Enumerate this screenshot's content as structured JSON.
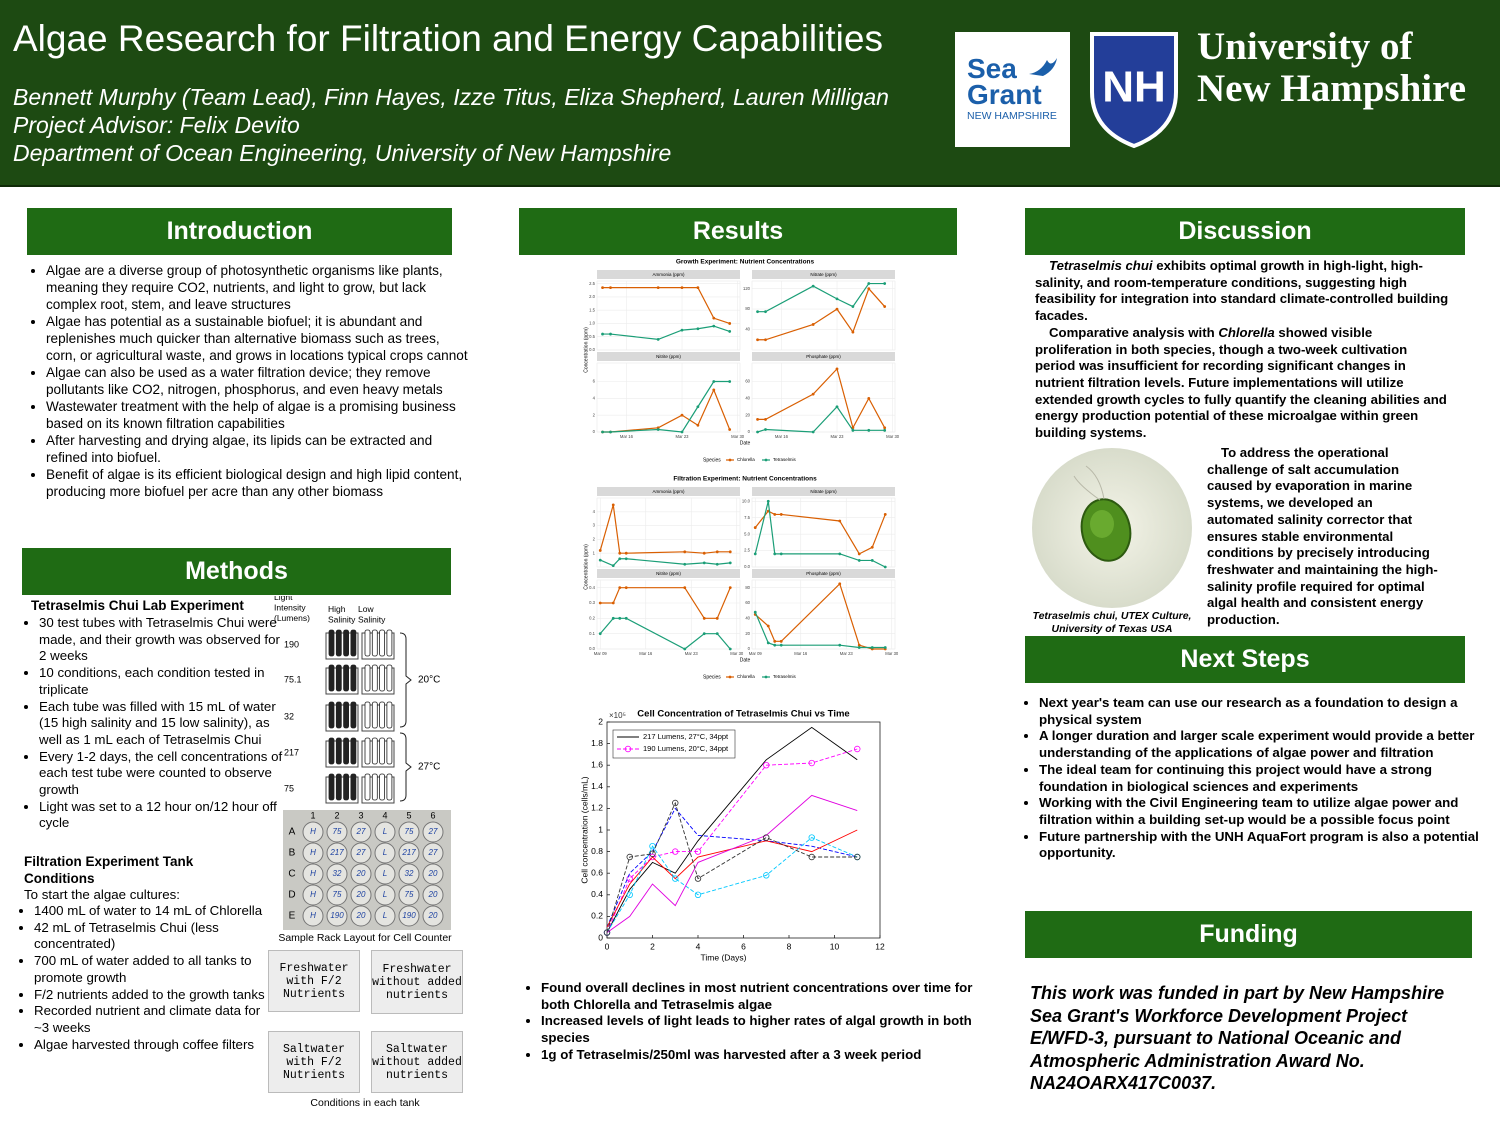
{
  "header": {
    "title": "Algae Research for Filtration and Energy Capabilities",
    "authors": "Bennett Murphy (Team Lead), Finn Hayes, Izze Titus, Eliza Shepherd, Lauren Milligan",
    "advisor": "Project Advisor: Felix Devito",
    "department": "Department of Ocean Engineering, University of New Hampshire",
    "logos": {
      "sea": "Sea",
      "grant": "Grant",
      "state": "NEW HAMPSHIRE",
      "shield": "NH",
      "university_line1": "University of",
      "university_line2": "New Hampshire"
    }
  },
  "introduction": {
    "heading": "Introduction",
    "bullets": [
      "Algae are a diverse group of photosynthetic organisms like plants, meaning they require CO2, nutrients, and light to grow, but lack complex root, stem, and leave structures",
      "Algae has potential as a sustainable biofuel; it is abundant and replenishes much quicker than alternative biomass such as trees, corn, or agricultural waste, and grows in locations typical crops cannot",
      "Algae can also be used as a water filtration device; they remove pollutants like CO2, nitrogen, phosphorus, and even heavy metals",
      "Wastewater treatment with the help of algae is a promising business based on its known filtration capabilities",
      "After harvesting and drying algae, its lipids can be extracted and refined into biofuel.",
      "Benefit of algae is its efficient biological design and high lipid content, producing more biofuel per acre than any other biomass"
    ]
  },
  "methods": {
    "heading": "Methods",
    "lab_heading": "Tetraselmis Chui Lab Experiment",
    "lab_bullets": [
      "30 test tubes with Tetraselmis Chui were made, and their growth was observed for 2 weeks",
      "10 conditions, each condition tested in triplicate",
      "Each tube was filled with 15 mL of water (15 high salinity and 15 low salinity), as well as 1 mL each of Tetraselmis Chui",
      "Every 1-2 days, the cell concentrations of each test tube were counted to observe growth",
      "Light was set to a 12 hour on/12 hour off cycle"
    ],
    "tank_heading": "Filtration Experiment Tank Conditions",
    "tank_intro": "To start the algae cultures:",
    "tank_bullets": [
      "1400 mL of water to 14 mL of Chlorella",
      "42 mL of Tetraselmis Chui (less concentrated)",
      "700 mL of water added to all tanks to promote growth",
      "F/2 nutrients added to the growth tanks",
      "Recorded nutrient and climate data for ~3 weeks",
      "Algae harvested through coffee filters"
    ],
    "tube_diagram": {
      "headers": [
        "Light Intensity (Lumens)",
        "High Salinity",
        "Low Salinity"
      ],
      "rows": [
        "190",
        "75.1",
        "32",
        "217",
        "75"
      ],
      "temperatures": [
        "20°C",
        "27°C"
      ]
    },
    "rack": {
      "columns": [
        "1",
        "2",
        "3",
        "4",
        "5",
        "6"
      ],
      "rows": [
        {
          "label": "A",
          "cells": [
            "H",
            "75",
            "27",
            "L",
            "75",
            "27"
          ]
        },
        {
          "label": "B",
          "cells": [
            "H",
            "217",
            "27",
            "L",
            "217",
            "27"
          ]
        },
        {
          "label": "C",
          "cells": [
            "H",
            "32",
            "20",
            "L",
            "32",
            "20"
          ]
        },
        {
          "label": "D",
          "cells": [
            "H",
            "75",
            "20",
            "L",
            "75",
            "20"
          ]
        },
        {
          "label": "E",
          "cells": [
            "H",
            "190",
            "20",
            "L",
            "190",
            "20"
          ]
        }
      ],
      "caption": "Sample Rack Layout for Cell Counter"
    },
    "tanks": [
      "Freshwater with F/2 Nutrients",
      "Freshwater without added nutrients",
      "Saltwater with F/2 Nutrients",
      "Saltwater without added nutrients"
    ],
    "tanks_caption": "Conditions in each tank"
  },
  "results": {
    "heading": "Results",
    "bullets": [
      "Found overall declines in most nutrient concentrations over time for both Chlorella and Tetraselmis algae",
      "Increased levels of light leads to higher rates of algal growth in both species",
      "1g of Tetraselmis/250ml was harvested after a 3 week period"
    ]
  },
  "discussion": {
    "heading": "Discussion",
    "paragraphs": [
      [
        {
          "text": "Tetraselmis chui",
          "italic": true
        },
        " exhibits optimal growth in high-light, high-salinity, and room-temperature conditions, suggesting high feasibility for integration into standard climate-controlled building facades."
      ],
      [
        "Comparative analysis with ",
        {
          "text": "Chlorella",
          "italic": true
        },
        " showed visible proliferation in both species, though a two-week cultivation period was insufficient for recording significant changes in nutrient filtration levels. Future implementations will utilize extended growth cycles to fully quantify the cleaning abilities and energy production potential of these microalgae within green building systems."
      ]
    ],
    "side_paragraph": "To address the operational challenge of salt accumulation caused by evaporation in marine systems, we developed an automated salinity corrector that ensures stable environmental conditions by precisely introducing freshwater and maintaining the high-salinity profile required for optimal algal health and consistent energy production.",
    "image_caption": "Tetraselmis chui, UTEX Culture, University of Texas USA"
  },
  "next_steps": {
    "heading": "Next Steps",
    "bullets": [
      "Next year's team can use our research as a foundation to design a physical system",
      "A longer duration and larger scale experiment would provide a better understanding of the applications of algae power and filtration",
      "The ideal team for continuing this project would have a strong foundation in biological sciences and experiments",
      "Working with the Civil Engineering team to utilize algae power and filtration within a building set-up would be a possible focus point",
      "Future partnership with the UNH AquaFort program is also a potential opportunity."
    ]
  },
  "funding": {
    "heading": "Funding",
    "text": "This work was funded in part by New Hampshire Sea Grant's Workforce Development Project E/WFD-3, pursuant to National Oceanic and Atmospheric Administration Award No. NA24OARX417C0037."
  },
  "chart_data": [
    {
      "type": "facet-line",
      "title": "Growth Experiment: Nutrient Concentrations",
      "ylabel": "Concentration (ppm)",
      "xlabel": "Date",
      "legend_title": "Species",
      "series": [
        {
          "name": "Chlorella",
          "color": "#d95f02"
        },
        {
          "name": "Tetraselmis",
          "color": "#1b9e77"
        }
      ],
      "x": [
        13,
        14,
        20,
        23,
        25,
        27,
        29
      ],
      "xlim": [
        12.3,
        30.3
      ],
      "xticks": [
        {
          "value": 16,
          "label": "Mar 16"
        },
        {
          "value": 23,
          "label": "Mar 23"
        },
        {
          "value": 30,
          "label": "Mar 30"
        }
      ],
      "panels": [
        {
          "title": "Ammonia (ppm)",
          "ylim": [
            0,
            2.6
          ],
          "yticks": [
            {
              "value": 0,
              "label": "0.0"
            },
            0.5,
            {
              "value": 1,
              "label": "1.0"
            },
            1.5,
            {
              "value": 2,
              "label": "2.0"
            },
            2.5
          ],
          "values": [
            [
              2.35,
              2.35,
              2.35,
              2.35,
              2.35,
              1.2,
              1.0
            ],
            [
              0.6,
              0.6,
              0.4,
              0.75,
              0.8,
              0.9,
              0.7
            ]
          ]
        },
        {
          "title": "Nitrate (ppm)",
          "ylim": [
            0,
            135
          ],
          "yticks": [
            40,
            80,
            120
          ],
          "values": [
            [
              20,
              20,
              50,
              80,
              35,
              120,
              85
            ],
            [
              75,
              75,
              125,
              100,
              85,
              130,
              130
            ]
          ]
        },
        {
          "title": "Nitrite (ppm)",
          "ylim": [
            0,
            8.2
          ],
          "yticks": [
            0,
            2,
            4,
            6
          ],
          "values": [
            [
              0,
              0,
              0.5,
              2,
              0.8,
              5,
              0.3
            ],
            [
              0,
              0,
              0.3,
              0,
              3,
              6,
              6
            ]
          ]
        },
        {
          "title": "Phosphate (ppm)",
          "ylim": [
            0,
            82
          ],
          "yticks": [
            0,
            20,
            40,
            60
          ],
          "values": [
            [
              15,
              15,
              45,
              75,
              5,
              40,
              5
            ],
            [
              0,
              3,
              0,
              30,
              2,
              2,
              2
            ]
          ]
        }
      ]
    },
    {
      "type": "facet-line",
      "title": "Filtration Experiment: Nutrient Concentrations",
      "ylabel": "Concentration (ppm)",
      "xlabel": "Date",
      "legend_title": "Species",
      "series": [
        {
          "name": "Chlorella",
          "color": "#d95f02"
        },
        {
          "name": "Tetraselmis",
          "color": "#1b9e77"
        }
      ],
      "x": [
        9,
        11,
        12,
        13,
        22,
        25,
        27,
        29
      ],
      "xlim": [
        8.5,
        30.5
      ],
      "xticks": [
        {
          "value": 9,
          "label": "Mar 09"
        },
        {
          "value": 16,
          "label": "Mar 16"
        },
        {
          "value": 23,
          "label": "Mar 23"
        },
        {
          "value": 30,
          "label": "Mar 30"
        }
      ],
      "panels": [
        {
          "title": "Ammonia (ppm)",
          "ylim": [
            0,
            5
          ],
          "yticks": [
            1,
            2,
            3,
            4
          ],
          "values": [
            [
              1.2,
              4.5,
              1.0,
              1.0,
              1.1,
              1.0,
              1.1,
              1.1
            ],
            [
              0.5,
              0.1,
              0.6,
              0.6,
              0.2,
              0.3,
              0.2,
              0.3
            ]
          ]
        },
        {
          "title": "Nitrate (ppm)",
          "ylim": [
            0,
            10.5
          ],
          "yticks": [
            {
              "value": 0,
              "label": "0.0"
            },
            2.5,
            {
              "value": 5,
              "label": "5.0"
            },
            7.5,
            {
              "value": 10,
              "label": "10.0"
            }
          ],
          "values": [
            [
              6,
              8.5,
              8,
              8,
              7,
              2,
              3,
              8
            ],
            [
              2,
              10,
              2,
              2,
              2,
              1,
              1,
              0
            ]
          ]
        },
        {
          "title": "Nitrite (ppm)",
          "ylim": [
            0,
            0.45
          ],
          "yticks": [
            {
              "value": 0,
              "label": "0.0"
            },
            0.1,
            0.2,
            0.3,
            0.4
          ],
          "values": [
            [
              0.3,
              0.3,
              0.4,
              0.4,
              0.4,
              0.2,
              0.2,
              0.4
            ],
            [
              0.1,
              0.2,
              0.2,
              0.2,
              0,
              0.1,
              0.1,
              0
            ]
          ]
        },
        {
          "title": "Phosphate (ppm)",
          "ylim": [
            0,
            90
          ],
          "yticks": [
            0,
            20,
            40,
            60,
            80
          ],
          "values": [
            [
              45,
              30,
              10,
              10,
              85,
              5,
              0,
              0
            ],
            [
              48,
              8,
              5,
              5,
              5,
              2,
              2,
              2
            ]
          ]
        }
      ]
    },
    {
      "type": "line",
      "title": "Cell Concentration of Tetraselmis Chui vs Time",
      "xlabel": "Time (Days)",
      "ylabel": "Cell concentration (cells/mL)",
      "y_scale_label": "×10⁵",
      "x": [
        0,
        1,
        2,
        3,
        4,
        7,
        9,
        11
      ],
      "xlim": [
        0,
        12
      ],
      "xticks": [
        0,
        2,
        4,
        6,
        8,
        10,
        12
      ],
      "ylim": [
        0,
        2
      ],
      "yticks": [
        0,
        0.2,
        0.4,
        0.6,
        0.8,
        1,
        1.2,
        1.4,
        1.6,
        1.8,
        2
      ],
      "series": [
        {
          "name": "217 Lumens, 27°C, 34ppt",
          "color": "#000000",
          "dashed": false,
          "markers": false,
          "values": [
            0.05,
            0.45,
            0.7,
            0.6,
            0.9,
            1.65,
            1.95,
            1.65
          ]
        },
        {
          "name": "190 Lumens, 20°C, 34ppt",
          "color": "#ff00ff",
          "dashed": true,
          "markers": true,
          "values": [
            0.05,
            0.55,
            0.75,
            0.8,
            0.8,
            1.6,
            1.62,
            1.75
          ]
        },
        {
          "color": "#0000ff",
          "dashed": true,
          "markers": false,
          "values": [
            0.1,
            0.6,
            0.8,
            1.2,
            0.95,
            0.9,
            0.85,
            0.75
          ]
        },
        {
          "color": "#ff0000",
          "dashed": false,
          "markers": false,
          "values": [
            0.1,
            0.5,
            0.75,
            0.55,
            0.75,
            0.9,
            0.8,
            1.0
          ]
        },
        {
          "color": "#00c8ff",
          "dashed": true,
          "markers": true,
          "values": [
            0.05,
            0.4,
            0.85,
            0.55,
            0.4,
            0.58,
            0.93,
            0.75
          ]
        },
        {
          "color": "#e000e0",
          "dashed": false,
          "markers": false,
          "values": [
            0.05,
            0.2,
            0.5,
            0.3,
            0.7,
            0.95,
            1.32,
            1.18
          ]
        },
        {
          "color": "#333333",
          "dashed": true,
          "markers": true,
          "values": [
            0.05,
            0.75,
            0.78,
            1.25,
            0.55,
            0.93,
            0.75,
            0.75
          ]
        }
      ]
    }
  ]
}
